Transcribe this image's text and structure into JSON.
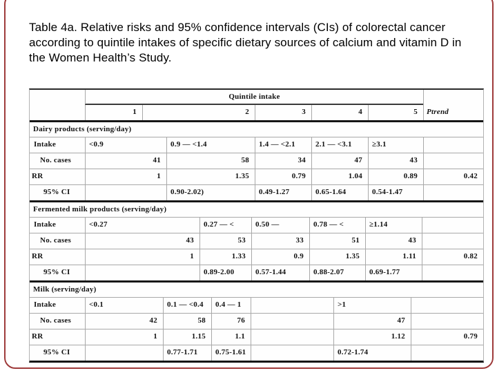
{
  "slide": {
    "title": "Table 4a. Relative risks and 95% confidence intervals (CIs) of colorectal cancer according to quintile intakes of specific dietary sources of calcium and vitamin D in the Women Health’s Study.",
    "frame_color": "#9e3a3a"
  },
  "table": {
    "header": {
      "group_label": "Quintile intake",
      "columns": [
        "1",
        "2",
        "3",
        "4",
        "5"
      ],
      "ptrend_label": "Ptrend"
    },
    "sections": [
      {
        "name": "Dairy products (serving/day)",
        "rows": {
          "intake": {
            "label": "Intake",
            "values": [
              "<0.9",
              "0.9 — <1.4",
              "1.4 — <2.1",
              "2.1 — <3.1",
              "≥3.1"
            ],
            "ptrend": ""
          },
          "cases": {
            "label": "No. cases",
            "values": [
              "41",
              "58",
              "34",
              "47",
              "43"
            ],
            "ptrend": ""
          },
          "rr": {
            "label": "RR",
            "values": [
              "1",
              "1.35",
              "0.79",
              "1.04",
              "0.89"
            ],
            "ptrend": "0.42"
          },
          "ci": {
            "label": "95% CI",
            "values": [
              "",
              "0.90-2.02)",
              "0.49-1.27",
              "0.65-1.64",
              "0.54-1.47"
            ],
            "ptrend": ""
          }
        }
      },
      {
        "name": "Fermented milk products (serving/day)",
        "rows": {
          "intake": {
            "label": "Intake",
            "values": [
              "<0.27",
              "0.27 — <",
              "0.50 —",
              "0.78 — <",
              "≥1.14"
            ],
            "ptrend": ""
          },
          "cases": {
            "label": "No. cases",
            "values": [
              "43",
              "53",
              "33",
              "51",
              "43"
            ],
            "ptrend": ""
          },
          "rr": {
            "label": "RR",
            "values": [
              "1",
              "1.33",
              "0.9",
              "1.35",
              "1.11"
            ],
            "ptrend": "0.82"
          },
          "ci": {
            "label": "95% CI",
            "values": [
              "",
              "0.89-2.00",
              "0.57-1.44",
              "0.88-2.07",
              "0.69-1.77"
            ],
            "ptrend": ""
          }
        }
      },
      {
        "name": "Milk (serving/day)",
        "rows": {
          "intake": {
            "label": "Intake",
            "values": [
              "<0.1",
              "0.1 — <0.4",
              "0.4 — 1",
              "",
              ">1"
            ],
            "ptrend": ""
          },
          "cases": {
            "label": "No. cases",
            "values": [
              "42",
              "58",
              "76",
              "",
              "47"
            ],
            "ptrend": ""
          },
          "rr": {
            "label": "RR",
            "values": [
              "1",
              "1.15",
              "1.1",
              "",
              "1.12"
            ],
            "ptrend": "0.79"
          },
          "ci": {
            "label": "95% CI",
            "values": [
              "",
              "0.77-1.71",
              "0.75-1.61",
              "",
              "0.72-1.74"
            ],
            "ptrend": ""
          }
        }
      }
    ]
  }
}
